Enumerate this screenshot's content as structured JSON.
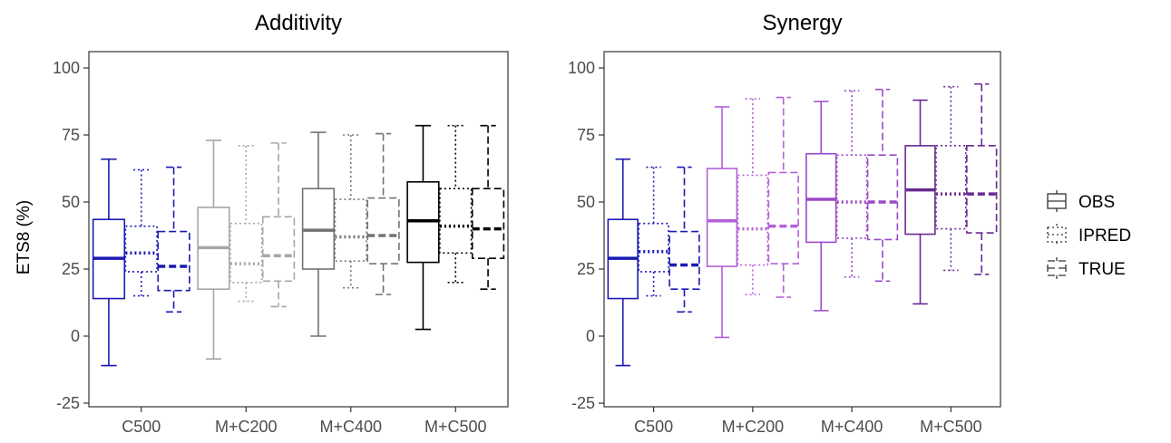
{
  "chart_data": {
    "type": "box",
    "ylabel": "ETS8 (%)",
    "ylim": [
      -25,
      100
    ],
    "yticks": [
      -25,
      0,
      25,
      50,
      75,
      100
    ],
    "categories": [
      "C500",
      "M+C200",
      "M+C400",
      "M+C500"
    ],
    "series_types": [
      {
        "name": "OBS",
        "line": "solid"
      },
      {
        "name": "IPRED",
        "line": "dotted"
      },
      {
        "name": "TRUE",
        "line": "dashed"
      }
    ],
    "legend_position": "right",
    "grid": false,
    "panels": [
      {
        "title": "Additivity",
        "colors": [
          "#1a1ab3",
          "#a6a6a6",
          "#737373",
          "#000000"
        ],
        "boxes": {
          "C500": {
            "OBS": {
              "min": -11,
              "q1": 14,
              "median": 29,
              "q3": 43.5,
              "max": 66
            },
            "IPRED": {
              "min": 15,
              "q1": 24,
              "median": 31,
              "q3": 41,
              "max": 62
            },
            "TRUE": {
              "min": 9,
              "q1": 17,
              "median": 26,
              "q3": 39,
              "max": 63
            }
          },
          "M+C200": {
            "OBS": {
              "min": -8.5,
              "q1": 17.5,
              "median": 33,
              "q3": 48,
              "max": 73
            },
            "IPRED": {
              "min": 13,
              "q1": 20,
              "median": 27,
              "q3": 42,
              "max": 71
            },
            "TRUE": {
              "min": 11,
              "q1": 20.5,
              "median": 30,
              "q3": 44.5,
              "max": 72
            }
          },
          "M+C400": {
            "OBS": {
              "min": 0,
              "q1": 25,
              "median": 39.5,
              "q3": 55,
              "max": 76
            },
            "IPRED": {
              "min": 18,
              "q1": 28,
              "median": 37,
              "q3": 51,
              "max": 75
            },
            "TRUE": {
              "min": 15.5,
              "q1": 27,
              "median": 37.5,
              "q3": 51.5,
              "max": 75.5
            }
          },
          "M+C500": {
            "OBS": {
              "min": 2.5,
              "q1": 27.5,
              "median": 43,
              "q3": 57.5,
              "max": 78.5
            },
            "IPRED": {
              "min": 20,
              "q1": 31,
              "median": 41,
              "q3": 55,
              "max": 78.5
            },
            "TRUE": {
              "min": 17.5,
              "q1": 29,
              "median": 40,
              "q3": 55,
              "max": 78.5
            }
          }
        }
      },
      {
        "title": "Synergy",
        "colors": [
          "#1a1ab3",
          "#b360d9",
          "#9a4ac7",
          "#6a2a91"
        ],
        "boxes": {
          "C500": {
            "OBS": {
              "min": -11,
              "q1": 14,
              "median": 29,
              "q3": 43.5,
              "max": 66
            },
            "IPRED": {
              "min": 15,
              "q1": 24,
              "median": 31.5,
              "q3": 42,
              "max": 63
            },
            "TRUE": {
              "min": 9,
              "q1": 17.5,
              "median": 26.5,
              "q3": 39,
              "max": 63
            }
          },
          "M+C200": {
            "OBS": {
              "min": -0.5,
              "q1": 26,
              "median": 43,
              "q3": 62.5,
              "max": 85.5
            },
            "IPRED": {
              "min": 15.5,
              "q1": 26.5,
              "median": 40,
              "q3": 60,
              "max": 88.5
            },
            "TRUE": {
              "min": 14.5,
              "q1": 27,
              "median": 41,
              "q3": 61,
              "max": 89
            }
          },
          "M+C400": {
            "OBS": {
              "min": 9.5,
              "q1": 35,
              "median": 51,
              "q3": 68,
              "max": 87.5
            },
            "IPRED": {
              "min": 22,
              "q1": 36.5,
              "median": 50,
              "q3": 67.5,
              "max": 91.5
            },
            "TRUE": {
              "min": 20.5,
              "q1": 36,
              "median": 50,
              "q3": 67.5,
              "max": 92
            }
          },
          "M+C500": {
            "OBS": {
              "min": 12,
              "q1": 38,
              "median": 54.5,
              "q3": 71,
              "max": 88
            },
            "IPRED": {
              "min": 24.5,
              "q1": 40,
              "median": 53,
              "q3": 71,
              "max": 93
            },
            "TRUE": {
              "min": 23,
              "q1": 38.5,
              "median": 53,
              "q3": 71,
              "max": 94
            }
          }
        }
      }
    ]
  }
}
